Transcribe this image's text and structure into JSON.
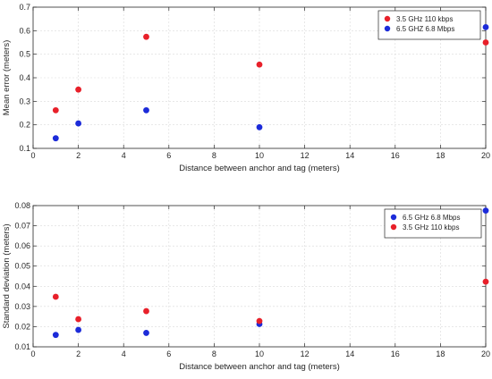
{
  "chart_data": [
    {
      "type": "scatter",
      "xlabel": "Distance between anchor and tag (meters)",
      "ylabel": "Mean error (meters)",
      "xlim": [
        0,
        20
      ],
      "ylim": [
        0.1,
        0.7
      ],
      "xticks": [
        0,
        2,
        4,
        6,
        8,
        10,
        12,
        14,
        16,
        18,
        20
      ],
      "yticks": [
        0.1,
        0.2,
        0.3,
        0.4,
        0.5,
        0.6,
        0.7
      ],
      "grid": true,
      "legend_position": "top-right",
      "series": [
        {
          "name": "3.5 GHz 110 kbps",
          "color": "#e8202a",
          "x": [
            1,
            2,
            5,
            10,
            20
          ],
          "y": [
            0.262,
            0.35,
            0.574,
            0.456,
            0.55
          ]
        },
        {
          "name": "6.5 GHZ 6.8 Mbps",
          "color": "#1c2bd9",
          "x": [
            1,
            2,
            5,
            10,
            20
          ],
          "y": [
            0.143,
            0.206,
            0.262,
            0.19,
            0.615
          ]
        }
      ]
    },
    {
      "type": "scatter",
      "xlabel": "Distance between anchor and tag (meters)",
      "ylabel": "Standard deviation (meters)",
      "xlim": [
        0,
        20
      ],
      "ylim": [
        0.01,
        0.08
      ],
      "xticks": [
        0,
        2,
        4,
        6,
        8,
        10,
        12,
        14,
        16,
        18,
        20
      ],
      "yticks": [
        0.01,
        0.02,
        0.03,
        0.04,
        0.05,
        0.06,
        0.07,
        0.08
      ],
      "grid": true,
      "legend_position": "top-right",
      "series": [
        {
          "name": "6.5 GHz 6.8 Mbps",
          "color": "#1c2bd9",
          "x": [
            1,
            2,
            5,
            10,
            20
          ],
          "y": [
            0.0159,
            0.0184,
            0.0169,
            0.0213,
            0.0775
          ]
        },
        {
          "name": "3.5 GHz 110 kbps",
          "color": "#e8202a",
          "x": [
            1,
            2,
            5,
            10,
            20
          ],
          "y": [
            0.0348,
            0.0237,
            0.0277,
            0.0228,
            0.0423
          ]
        }
      ]
    }
  ]
}
